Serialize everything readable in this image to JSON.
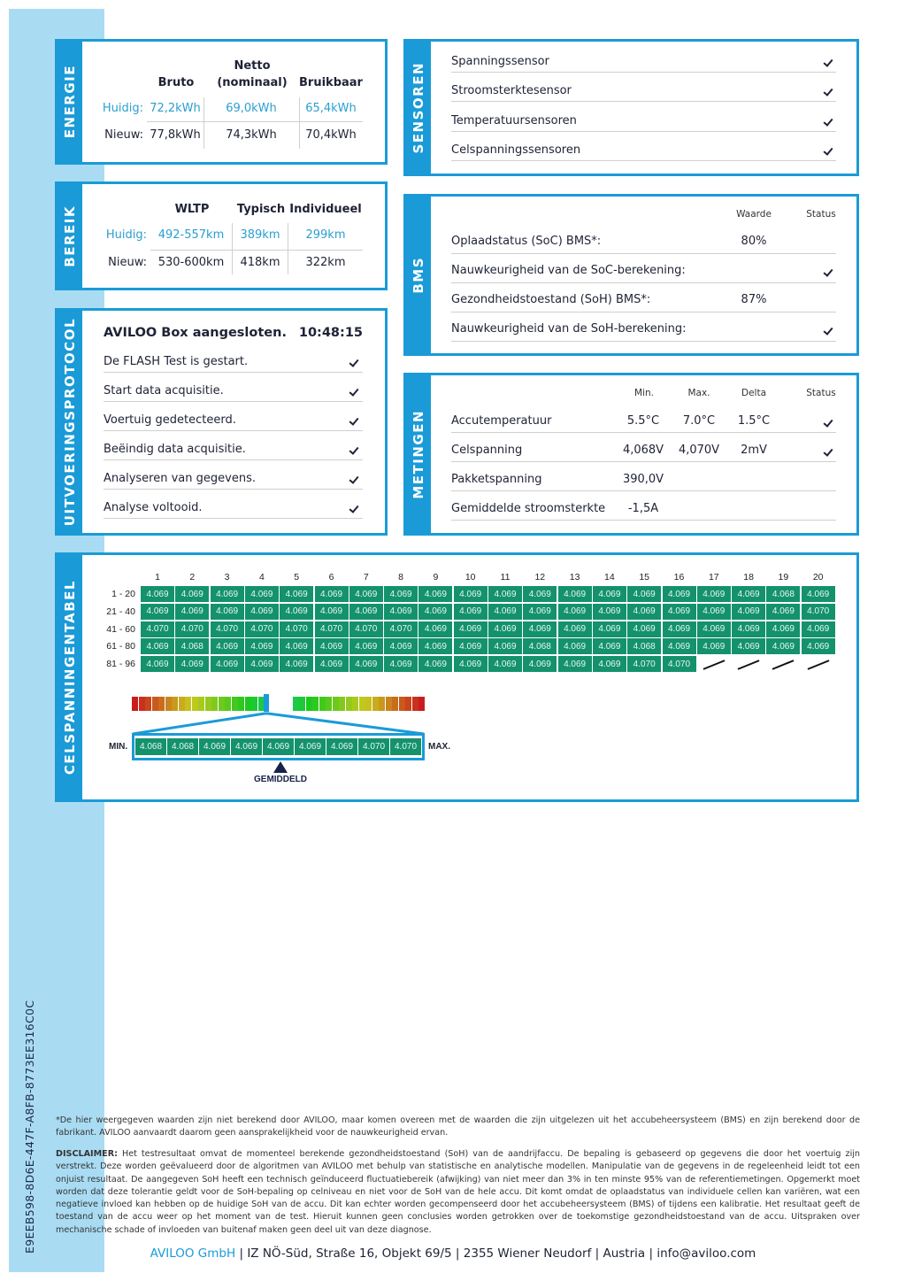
{
  "document_id": "E9EEB598-8D6E-447F-A8FB-8773EE316C0C",
  "energie": {
    "label": "ENERGIE",
    "headers": [
      "Bruto",
      "Netto",
      "(nominaal)",
      "Bruikbaar"
    ],
    "current": {
      "label": "Huidig:",
      "values": [
        "72,2kWh",
        "69,0kWh",
        "65,4kWh"
      ]
    },
    "new": {
      "label": "Nieuw:",
      "values": [
        "77,8kWh",
        "74,3kWh",
        "70,4kWh"
      ]
    }
  },
  "bereik": {
    "label": "BEREIK",
    "headers": [
      "WLTP",
      "Typisch",
      "Individueel"
    ],
    "current": {
      "label": "Huidig:",
      "values": [
        "492-557km",
        "389km",
        "299km"
      ]
    },
    "new": {
      "label": "Nieuw:",
      "values": [
        "530-600km",
        "418km",
        "322km"
      ]
    }
  },
  "protocol": {
    "label": "UITVOERINGSPROTOCOL",
    "title": "AVILOO Box aangesloten.",
    "time": "10:48:15",
    "steps": [
      {
        "label": "De FLASH Test is gestart.",
        "status": "ok"
      },
      {
        "label": "Start data acquisitie.",
        "status": "ok"
      },
      {
        "label": "Voertuig gedetecteerd.",
        "status": "ok"
      },
      {
        "label": "Beëindig data acquisitie.",
        "status": "ok"
      },
      {
        "label": "Analyseren van gegevens.",
        "status": "ok"
      },
      {
        "label": "Analyse voltooid.",
        "status": "ok"
      }
    ]
  },
  "sensoren": {
    "label": "SENSOREN",
    "items": [
      {
        "label": "Spanningssensor",
        "status": "ok"
      },
      {
        "label": "Stroomsterktesensor",
        "status": "ok"
      },
      {
        "label": "Temperatuursensoren",
        "status": "ok"
      },
      {
        "label": "Celspanningssensoren",
        "status": "ok"
      }
    ]
  },
  "bms": {
    "label": "BMS",
    "headers": {
      "value": "Waarde",
      "status": "Status"
    },
    "rows": [
      {
        "label": "Oplaadstatus (SoC) BMS*:",
        "value": "80%",
        "status": ""
      },
      {
        "label": "Nauwkeurigheid van de SoC-berekening:",
        "value": "",
        "status": "ok"
      },
      {
        "label": "Gezondheidstoestand (SoH) BMS*:",
        "value": "87%",
        "status": ""
      },
      {
        "label": "Nauwkeurigheid van de SoH-berekening:",
        "value": "",
        "status": "ok"
      }
    ]
  },
  "metingen": {
    "label": "METINGEN",
    "headers": {
      "min": "Min.",
      "max": "Max.",
      "delta": "Delta",
      "status": "Status"
    },
    "rows": [
      {
        "label": "Accutemperatuur",
        "min": "5.5°C",
        "max": "7.0°C",
        "delta": "1.5°C",
        "status": "ok"
      },
      {
        "label": "Celspanning",
        "min": "4,068V",
        "max": "4,070V",
        "delta": "2mV",
        "status": "ok"
      },
      {
        "label": "Pakketspanning",
        "min": "390,0V",
        "max": "",
        "delta": "",
        "status": ""
      },
      {
        "label": "Gemiddelde stroomsterkte",
        "min": "-1,5A",
        "max": "",
        "delta": "",
        "status": ""
      }
    ]
  },
  "celspanning": {
    "label": "CELSPANNINGENTABEL",
    "columns": [
      "1",
      "2",
      "3",
      "4",
      "5",
      "6",
      "7",
      "8",
      "9",
      "10",
      "11",
      "12",
      "13",
      "14",
      "15",
      "16",
      "17",
      "18",
      "19",
      "20"
    ],
    "rows": [
      {
        "label": "1 - 20",
        "values": [
          "4.069",
          "4.069",
          "4.069",
          "4.069",
          "4.069",
          "4.069",
          "4.069",
          "4.069",
          "4.069",
          "4.069",
          "4.069",
          "4.069",
          "4.069",
          "4.069",
          "4.069",
          "4.069",
          "4.069",
          "4.069",
          "4.068",
          "4.069"
        ]
      },
      {
        "label": "21 - 40",
        "values": [
          "4.069",
          "4.069",
          "4.069",
          "4.069",
          "4.069",
          "4.069",
          "4.069",
          "4.069",
          "4.069",
          "4.069",
          "4.069",
          "4.069",
          "4.069",
          "4.069",
          "4.069",
          "4.069",
          "4.069",
          "4.069",
          "4.069",
          "4.070"
        ]
      },
      {
        "label": "41 - 60",
        "values": [
          "4.070",
          "4.070",
          "4.070",
          "4.070",
          "4.070",
          "4.070",
          "4.070",
          "4.070",
          "4.069",
          "4.069",
          "4.069",
          "4.069",
          "4.069",
          "4.069",
          "4.069",
          "4.069",
          "4.069",
          "4.069",
          "4.069",
          "4.069"
        ]
      },
      {
        "label": "61 - 80",
        "values": [
          "4.069",
          "4.068",
          "4.069",
          "4.069",
          "4.069",
          "4.069",
          "4.069",
          "4.069",
          "4.069",
          "4.069",
          "4.069",
          "4.068",
          "4.069",
          "4.069",
          "4.068",
          "4.069",
          "4.069",
          "4.069",
          "4.069",
          "4.069"
        ]
      },
      {
        "label": "81 - 96",
        "values": [
          "4.069",
          "4.069",
          "4.069",
          "4.069",
          "4.069",
          "4.069",
          "4.069",
          "4.069",
          "4.069",
          "4.069",
          "4.069",
          "4.069",
          "4.069",
          "4.069",
          "4.070",
          "4.070"
        ]
      }
    ],
    "distribution": {
      "min_label": "MIN.",
      "max_label": "MAX.",
      "avg_label": "GEMIDDELD",
      "values": [
        "4.068",
        "4.068",
        "4.069",
        "4.069",
        "4.069",
        "4.069",
        "4.069",
        "4.070",
        "4.070"
      ]
    },
    "colors": {
      "cell": "#14926c",
      "accent": "#1a9bd7"
    }
  },
  "footnote": "*De hier weergegeven waarden zijn niet berekend door AVILOO, maar komen overeen met de waarden die zijn uitgelezen uit het accubeheersysteem (BMS) en zijn berekend door de fabrikant. AVILOO aanvaardt daarom geen aansprakelijkheid voor de nauwkeurigheid ervan.",
  "disclaimer": {
    "label": "DISCLAIMER:",
    "text": " Het testresultaat omvat de momenteel berekende gezondheidstoestand (SoH) van de aandrijfaccu. De bepaling is gebaseerd op gegevens die door het voertuig zijn verstrekt. Deze worden geëvalueerd door de algoritmen van AVILOO met behulp van statistische en analytische modellen. Manipulatie van de gegevens in de regeleenheid leidt tot een onjuist resultaat. De aangegeven SoH heeft een technisch geïnduceerd fluctuatiebereik (afwijking) van niet meer dan 3% in ten minste 95% van de referentiemetingen. Opgemerkt moet worden dat deze tolerantie geldt voor de SoH-bepaling op celniveau en niet voor de SoH van de hele accu. Dit komt omdat de oplaadstatus van individuele cellen kan variëren, wat een negatieve invloed kan hebben op de huidige SoH van de accu. Dit kan echter worden gecompenseerd door het accubeheersysteem (BMS) of tijdens een kalibratie. Het resultaat geeft de toestand van de accu weer op het moment van de test. Hieruit kunnen geen conclusies worden getrokken over de toekomstige gezondheidstoestand van de accu. Uitspraken over mechanische schade of invloeden van buitenaf maken geen deel uit van deze diagnose."
  },
  "footer": {
    "company": "AVILOO GmbH",
    "address": "IZ NÖ-Süd, Straße 16, Objekt 69/5",
    "city": "2355 Wiener Neudorf",
    "country": "Austria",
    "email": "info@aviloo.com",
    "separator": "|"
  }
}
